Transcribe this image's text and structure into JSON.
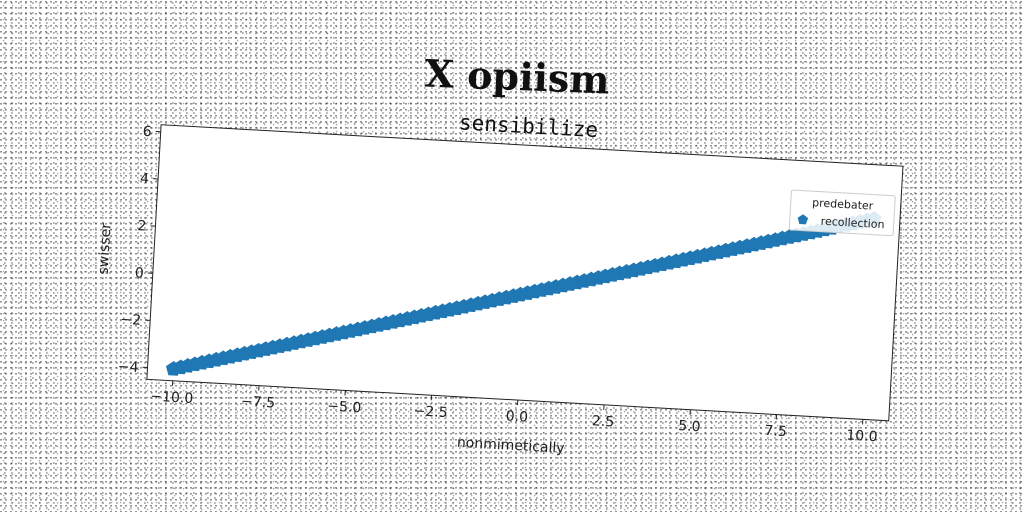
{
  "figure": {
    "suptitle": "X opiism"
  },
  "chart_data": {
    "type": "scatter",
    "title": "sensibilize",
    "xlabel": "nonmimetically",
    "ylabel": "swisser",
    "xlim": [
      -10.75,
      10.75
    ],
    "ylim": [
      -4.5,
      6.3
    ],
    "xticks": [
      -10.0,
      -7.5,
      -5.0,
      -2.5,
      0.0,
      2.5,
      5.0,
      7.5,
      10.0
    ],
    "xtick_labels": [
      "−10.0",
      "−7.5",
      "−5.0",
      "−2.5",
      "0.0",
      "2.5",
      "5.0",
      "7.5",
      "10.0"
    ],
    "yticks": [
      -4,
      -2,
      0,
      2,
      4,
      6
    ],
    "ytick_labels": [
      "−4",
      "−2",
      "0",
      "2",
      "4",
      "6"
    ],
    "grid": false,
    "legend": {
      "title": "predebater",
      "placement": "top-right",
      "entries": [
        {
          "label": "recollection",
          "marker": "pentagon",
          "color": "#1f77b4"
        }
      ]
    },
    "series": [
      {
        "name": "recollection",
        "color": "#1f77b4",
        "marker": "pentagon",
        "x_range": [
          -10.0,
          10.0
        ],
        "n_points": 100,
        "slope": 0.4,
        "intercept": 0.0
      }
    ]
  }
}
